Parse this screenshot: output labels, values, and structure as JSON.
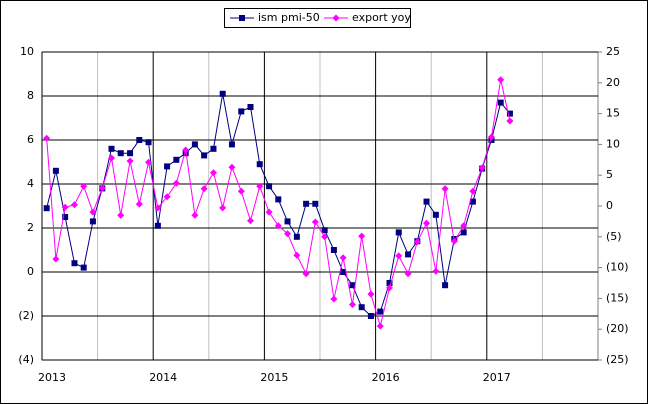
{
  "chart_data": {
    "type": "line",
    "xlim": [
      2013,
      2018
    ],
    "xticks": [
      2013,
      2014,
      2015,
      2016,
      2017
    ],
    "xgrid_minor": [
      2013.5,
      2014.5,
      2015.5,
      2016.5,
      2017.5
    ],
    "ylim": [
      -4,
      10
    ],
    "yticks": [
      10,
      8,
      6,
      4,
      2,
      0,
      {
        "value": -2,
        "label": "(2)"
      },
      {
        "value": -4,
        "label": "(4)"
      }
    ],
    "y2lim": [
      -25,
      25
    ],
    "y2ticks": [
      25,
      20,
      15,
      10,
      5,
      0,
      {
        "value": -5,
        "label": "(5)"
      },
      {
        "value": -10,
        "label": "(10)"
      },
      {
        "value": -15,
        "label": "(15)"
      },
      {
        "value": -20,
        "label": "(20)"
      },
      {
        "value": -25,
        "label": "(25)"
      }
    ],
    "grid": true,
    "legend": "top",
    "x": [
      2013.042,
      2013.125,
      2013.208,
      2013.292,
      2013.375,
      2013.458,
      2013.542,
      2013.625,
      2013.708,
      2013.792,
      2013.875,
      2013.958,
      2014.042,
      2014.125,
      2014.208,
      2014.292,
      2014.375,
      2014.458,
      2014.542,
      2014.625,
      2014.708,
      2014.792,
      2014.875,
      2014.958,
      2015.042,
      2015.125,
      2015.208,
      2015.292,
      2015.375,
      2015.458,
      2015.542,
      2015.625,
      2015.708,
      2015.792,
      2015.875,
      2015.958,
      2016.042,
      2016.125,
      2016.208,
      2016.292,
      2016.375,
      2016.458,
      2016.542,
      2016.625,
      2016.708,
      2016.792,
      2016.875,
      2016.958,
      2017.042,
      2017.125,
      2017.208
    ],
    "series": [
      {
        "name": "ism pmi-50",
        "color": "#000080",
        "marker": "square",
        "values": [
          2.9,
          4.6,
          2.5,
          0.4,
          0.2,
          2.3,
          3.8,
          5.6,
          5.4,
          5.4,
          6.0,
          5.9,
          2.1,
          4.8,
          5.1,
          5.4,
          5.8,
          5.3,
          5.6,
          8.1,
          5.8,
          7.3,
          7.5,
          4.9,
          3.9,
          3.3,
          2.3,
          1.6,
          3.1,
          3.1,
          1.9,
          1.0,
          0.0,
          -0.6,
          -1.6,
          -2.0,
          -1.8,
          -0.5,
          1.8,
          0.8,
          1.4,
          3.2,
          2.6,
          -0.6,
          1.5,
          1.8,
          3.2,
          4.7,
          6.0,
          7.7,
          7.2
        ]
      },
      {
        "name": "export yoy",
        "color": "#ff00ff",
        "marker": "diamond",
        "axis": "y2",
        "values": [
          11,
          -8.6,
          -0.2,
          0.2,
          3.2,
          -1,
          2.9,
          7.8,
          -1.5,
          7.3,
          0.3,
          7.1,
          -0.3,
          1.5,
          3.7,
          9.1,
          -1.5,
          2.8,
          5.4,
          -0.3,
          6.3,
          2.4,
          -2.4,
          3.2,
          -1,
          -3.2,
          -4.5,
          -8,
          -11,
          -2.6,
          -5,
          -15.1,
          -8.4,
          -16,
          -4.9,
          -14.3,
          -19.5,
          -13.3,
          -8.1,
          -11,
          -5.8,
          -2.8,
          -10.6,
          2.8,
          -5.7,
          -3.2,
          2.4,
          6.2,
          11.2,
          20.5,
          13.8
        ]
      }
    ]
  }
}
